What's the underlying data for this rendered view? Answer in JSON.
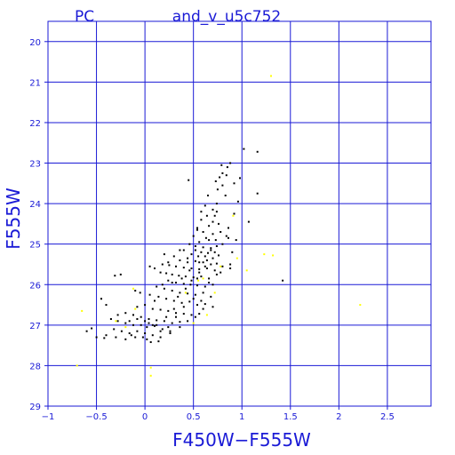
{
  "chart_data": {
    "type": "scatter",
    "title": "and_v_u5c752",
    "corner_label": "PC",
    "xlabel": "F450W−F555W",
    "ylabel": "F555W",
    "xlim": [
      -1.0,
      2.95
    ],
    "ylim": [
      29.0,
      19.5
    ],
    "y_inverted": true,
    "grid": true,
    "x_ticks": [
      -1,
      -0.5,
      0,
      0.5,
      1,
      1.5,
      2,
      2.5
    ],
    "x_tick_labels": [
      "−1",
      "−0.5",
      "0",
      "0.5",
      "1",
      "1.5",
      "2",
      "2.5"
    ],
    "y_ticks": [
      20,
      21,
      22,
      23,
      24,
      25,
      26,
      27,
      28,
      29
    ],
    "y_tick_labels": [
      "20",
      "21",
      "22",
      "23",
      "24",
      "25",
      "26",
      "27",
      "28",
      "29"
    ],
    "colors": {
      "axis": "#1a1ad6",
      "grid": "#1a1ad6",
      "primary": "#000000",
      "secondary": "#ffff00"
    },
    "series": [
      {
        "points": [
          [
            1.02,
            22.65
          ],
          [
            1.16,
            22.72
          ],
          [
            0.88,
            23.0
          ],
          [
            0.85,
            23.1
          ],
          [
            0.79,
            23.05
          ],
          [
            0.8,
            23.25
          ],
          [
            0.77,
            23.35
          ],
          [
            0.73,
            23.45
          ],
          [
            0.84,
            23.3
          ],
          [
            0.98,
            23.37
          ],
          [
            0.92,
            23.5
          ],
          [
            0.75,
            23.65
          ],
          [
            0.83,
            23.8
          ],
          [
            1.16,
            23.75
          ],
          [
            0.65,
            23.8
          ],
          [
            0.45,
            23.42
          ],
          [
            0.74,
            24.0
          ],
          [
            0.7,
            24.15
          ],
          [
            0.64,
            24.3
          ],
          [
            0.72,
            24.3
          ],
          [
            0.58,
            24.4
          ],
          [
            0.76,
            24.5
          ],
          [
            0.66,
            24.55
          ],
          [
            0.54,
            24.6
          ],
          [
            0.6,
            24.7
          ],
          [
            0.78,
            24.7
          ],
          [
            0.7,
            24.75
          ],
          [
            0.5,
            24.8
          ],
          [
            0.63,
            24.85
          ],
          [
            0.73,
            24.9
          ],
          [
            0.56,
            24.95
          ],
          [
            0.86,
            24.85
          ],
          [
            1.07,
            24.45
          ],
          [
            0.46,
            25.0
          ],
          [
            0.52,
            25.05
          ],
          [
            0.6,
            25.08
          ],
          [
            0.68,
            25.1
          ],
          [
            0.74,
            25.05
          ],
          [
            0.4,
            25.15
          ],
          [
            0.58,
            25.2
          ],
          [
            0.65,
            25.22
          ],
          [
            0.48,
            25.25
          ],
          [
            0.55,
            25.3
          ],
          [
            0.62,
            25.3
          ],
          [
            0.7,
            25.35
          ],
          [
            0.3,
            25.3
          ],
          [
            0.76,
            25.28
          ],
          [
            0.36,
            25.4
          ],
          [
            0.44,
            25.45
          ],
          [
            0.52,
            25.42
          ],
          [
            0.6,
            25.45
          ],
          [
            0.68,
            25.5
          ],
          [
            0.74,
            25.48
          ],
          [
            0.18,
            25.5
          ],
          [
            0.25,
            25.52
          ],
          [
            0.32,
            25.55
          ],
          [
            0.4,
            25.58
          ],
          [
            0.48,
            25.6
          ],
          [
            0.56,
            25.62
          ],
          [
            0.64,
            25.6
          ],
          [
            0.72,
            25.65
          ],
          [
            0.05,
            25.55
          ],
          [
            0.1,
            25.6
          ],
          [
            0.88,
            25.6
          ],
          [
            0.16,
            25.7
          ],
          [
            0.22,
            25.72
          ],
          [
            0.28,
            25.75
          ],
          [
            0.35,
            25.78
          ],
          [
            0.42,
            25.8
          ],
          [
            0.5,
            25.82
          ],
          [
            0.58,
            25.8
          ],
          [
            0.66,
            25.85
          ],
          [
            0.24,
            25.9
          ],
          [
            0.32,
            25.95
          ],
          [
            0.4,
            25.98
          ],
          [
            0.47,
            26.0
          ],
          [
            0.54,
            26.02
          ],
          [
            0.62,
            26.05
          ],
          [
            0.7,
            26.0
          ],
          [
            0.12,
            26.05
          ],
          [
            0.2,
            26.1
          ],
          [
            0.28,
            26.15
          ],
          [
            0.36,
            26.2
          ],
          [
            0.44,
            26.22
          ],
          [
            0.52,
            26.25
          ],
          [
            0.6,
            26.2
          ],
          [
            0.68,
            26.3
          ],
          [
            -0.05,
            26.2
          ],
          [
            0.05,
            26.25
          ],
          [
            0.14,
            26.3
          ],
          [
            0.22,
            26.35
          ],
          [
            0.3,
            26.4
          ],
          [
            0.38,
            26.45
          ],
          [
            0.46,
            26.42
          ],
          [
            0.54,
            26.5
          ],
          [
            0.62,
            26.48
          ],
          [
            0.7,
            26.55
          ],
          [
            -0.08,
            26.55
          ],
          [
            0.0,
            26.5
          ],
          [
            0.08,
            26.6
          ],
          [
            0.16,
            26.62
          ],
          [
            0.24,
            26.65
          ],
          [
            0.32,
            26.7
          ],
          [
            0.4,
            26.72
          ],
          [
            0.48,
            26.75
          ],
          [
            0.56,
            26.72
          ],
          [
            -0.2,
            26.7
          ],
          [
            -0.12,
            26.75
          ],
          [
            -0.04,
            26.8
          ],
          [
            0.04,
            26.85
          ],
          [
            0.12,
            26.88
          ],
          [
            0.2,
            26.9
          ],
          [
            0.28,
            26.95
          ],
          [
            0.36,
            26.92
          ],
          [
            -0.28,
            26.9
          ],
          [
            -0.2,
            26.95
          ],
          [
            -0.12,
            27.0
          ],
          [
            -0.04,
            27.0
          ],
          [
            0.02,
            27.05
          ],
          [
            0.1,
            27.02
          ],
          [
            0.18,
            27.1
          ],
          [
            0.26,
            27.15
          ],
          [
            -0.32,
            27.1
          ],
          [
            -0.24,
            27.15
          ],
          [
            -0.16,
            27.2
          ],
          [
            -0.08,
            27.15
          ],
          [
            0.0,
            27.2
          ],
          [
            0.08,
            27.25
          ],
          [
            0.16,
            27.3
          ],
          [
            -0.5,
            27.3
          ],
          [
            -0.4,
            27.25
          ],
          [
            -0.3,
            27.3
          ],
          [
            -0.2,
            27.35
          ],
          [
            -0.1,
            27.3
          ],
          [
            0.02,
            27.35
          ],
          [
            -0.42,
            27.32
          ],
          [
            -0.55,
            27.08
          ],
          [
            -0.6,
            27.15
          ],
          [
            -0.25,
            25.75
          ],
          [
            -0.31,
            25.78
          ],
          [
            -0.45,
            26.35
          ],
          [
            -0.4,
            26.5
          ],
          [
            -0.28,
            26.75
          ],
          [
            -0.35,
            26.85
          ],
          [
            0.04,
            26.95
          ],
          [
            0.12,
            27.0
          ],
          [
            0.22,
            26.8
          ],
          [
            0.3,
            26.6
          ],
          [
            0.34,
            26.3
          ],
          [
            0.42,
            26.1
          ],
          [
            0.48,
            25.9
          ],
          [
            0.56,
            25.7
          ],
          [
            0.64,
            25.4
          ],
          [
            0.72,
            25.2
          ],
          [
            0.8,
            25.0
          ],
          [
            0.66,
            24.9
          ],
          [
            0.58,
            24.2
          ],
          [
            0.62,
            24.05
          ],
          [
            0.84,
            24.8
          ],
          [
            0.88,
            25.5
          ],
          [
            1.42,
            25.9
          ],
          [
            0.9,
            25.2
          ],
          [
            0.6,
            26.6
          ],
          [
            0.52,
            26.8
          ],
          [
            0.44,
            26.9
          ],
          [
            0.36,
            27.05
          ],
          [
            0.26,
            27.2
          ],
          [
            0.14,
            27.4
          ],
          [
            0.06,
            27.42
          ],
          [
            -0.02,
            27.3
          ],
          [
            -0.14,
            27.25
          ],
          [
            0.2,
            25.25
          ],
          [
            0.24,
            25.45
          ],
          [
            0.36,
            25.15
          ],
          [
            0.44,
            25.35
          ],
          [
            0.28,
            25.95
          ],
          [
            0.18,
            26.0
          ],
          [
            0.1,
            26.4
          ],
          [
            -0.1,
            26.15
          ],
          [
            0.66,
            25.95
          ],
          [
            0.74,
            25.75
          ],
          [
            0.8,
            25.55
          ],
          [
            0.96,
            23.95
          ],
          [
            0.92,
            24.25
          ],
          [
            0.86,
            24.6
          ],
          [
            0.94,
            24.9
          ],
          [
            0.78,
            25.7
          ],
          [
            0.56,
            25.45
          ],
          [
            0.46,
            25.65
          ],
          [
            0.38,
            25.85
          ],
          [
            0.5,
            26.35
          ],
          [
            0.58,
            26.4
          ],
          [
            0.4,
            26.55
          ],
          [
            0.32,
            26.8
          ],
          [
            0.24,
            27.05
          ],
          [
            0.16,
            27.15
          ],
          [
            0.08,
            27.0
          ],
          [
            0.0,
            26.9
          ],
          [
            -0.08,
            26.85
          ],
          [
            -0.16,
            26.9
          ],
          [
            0.54,
            24.65
          ],
          [
            0.7,
            24.45
          ],
          [
            0.8,
            23.55
          ],
          [
            0.74,
            24.2
          ],
          [
            0.52,
            25.15
          ],
          [
            0.68,
            25.15
          ],
          [
            0.62,
            25.55
          ],
          [
            0.54,
            25.85
          ]
        ]
      },
      {
        "points": [
          [
            1.3,
            20.85
          ],
          [
            0.91,
            24.3
          ],
          [
            1.23,
            25.25
          ],
          [
            1.32,
            25.28
          ],
          [
            1.05,
            25.65
          ],
          [
            0.95,
            25.35
          ],
          [
            2.22,
            26.5
          ],
          [
            -0.65,
            26.65
          ],
          [
            -0.12,
            26.1
          ],
          [
            -0.3,
            26.9
          ],
          [
            -0.1,
            26.6
          ],
          [
            0.5,
            26.95
          ],
          [
            0.06,
            28.05
          ],
          [
            0.06,
            28.25
          ],
          [
            -0.7,
            28.0
          ],
          [
            0.78,
            25.55
          ],
          [
            0.6,
            25.85
          ],
          [
            0.72,
            26.2
          ],
          [
            0.64,
            26.75
          ],
          [
            0.42,
            26.2
          ],
          [
            0.55,
            25.9
          ],
          [
            -0.2,
            27.05
          ]
        ]
      }
    ]
  }
}
